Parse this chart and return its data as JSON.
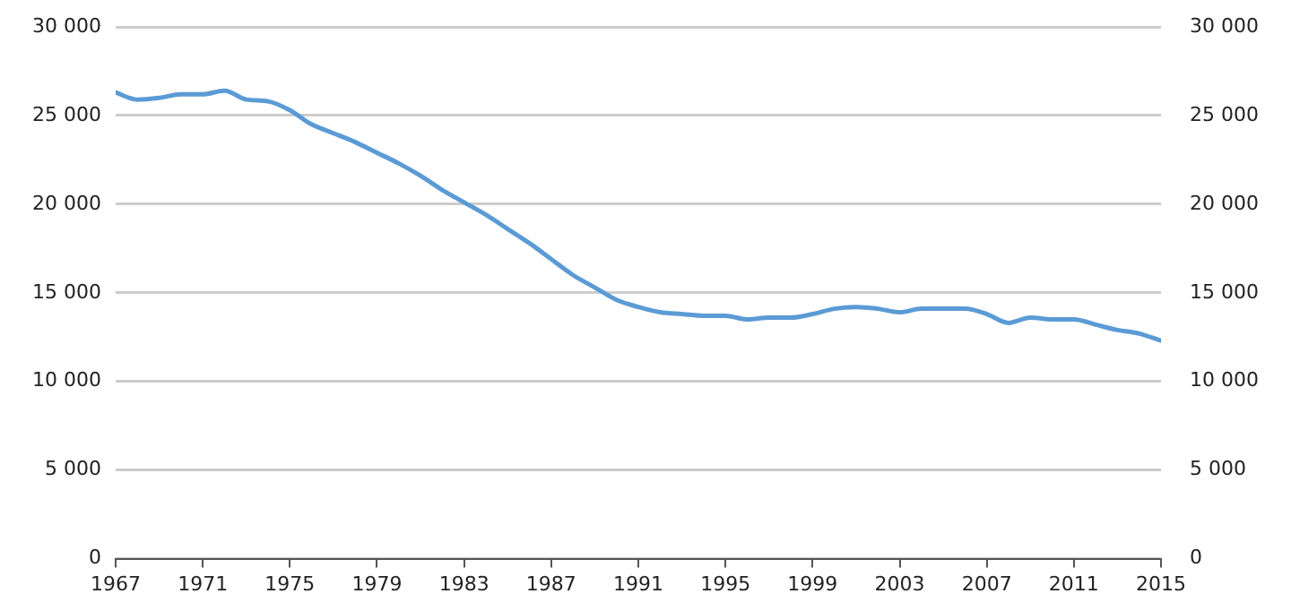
{
  "chart_data": {
    "type": "line",
    "x": [
      1967,
      1968,
      1969,
      1970,
      1971,
      1972,
      1973,
      1974,
      1975,
      1976,
      1977,
      1978,
      1979,
      1980,
      1981,
      1982,
      1983,
      1984,
      1985,
      1986,
      1987,
      1988,
      1989,
      1990,
      1991,
      1992,
      1993,
      1994,
      1995,
      1996,
      1997,
      1998,
      1999,
      2000,
      2001,
      2002,
      2003,
      2004,
      2005,
      2006,
      2007,
      2008,
      2009,
      2010,
      2011,
      2012,
      2013,
      2014,
      2015
    ],
    "series": [
      {
        "color": "#5b9bd5",
        "values": [
          26300,
          25900,
          26000,
          26200,
          26200,
          26400,
          25900,
          25800,
          25300,
          24500,
          24000,
          23500,
          22900,
          22300,
          21600,
          20800,
          20100,
          19400,
          18600,
          17800,
          16900,
          16000,
          15300,
          14600,
          14200,
          13900,
          13800,
          13700,
          13700,
          13500,
          13600,
          13600,
          13800,
          14100,
          14200,
          14100,
          13900,
          14100,
          14100,
          14100,
          13800,
          13300,
          13600,
          13500,
          13500,
          13200,
          12900,
          12700,
          12300
        ]
      }
    ],
    "xlim": [
      1967,
      2015
    ],
    "xticks": [
      1967,
      1971,
      1975,
      1979,
      1983,
      1987,
      1991,
      1995,
      1999,
      2003,
      2007,
      2011,
      2015
    ],
    "ylim": [
      0,
      30000
    ],
    "yticks": [
      0,
      {
        "value": 5000,
        "label": "5 000"
      },
      {
        "value": 10000,
        "label": "10 000"
      },
      {
        "value": 15000,
        "label": "15 000"
      },
      {
        "value": 20000,
        "label": "20 000"
      },
      {
        "value": 25000,
        "label": "25 000"
      },
      {
        "value": 30000,
        "label": "30 000"
      }
    ],
    "y2lim": [
      0,
      30000
    ],
    "y2ticks": [
      0,
      {
        "value": 5000,
        "label": "5 000"
      },
      {
        "value": 10000,
        "label": "10 000"
      },
      {
        "value": 15000,
        "label": "15 000"
      },
      {
        "value": 20000,
        "label": "20 000"
      },
      {
        "value": 25000,
        "label": "25 000"
      },
      {
        "value": 30000,
        "label": "30 000"
      }
    ],
    "grid": "y",
    "legend": false,
    "marker": "none",
    "line_style": "solid"
  }
}
